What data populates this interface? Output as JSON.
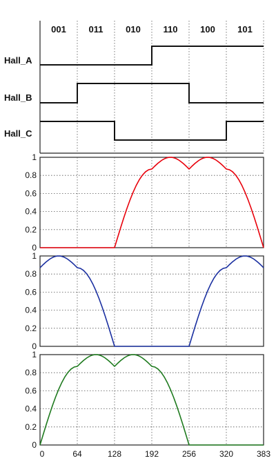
{
  "chart_data": [
    {
      "type": "line",
      "subtype": "digital-timing",
      "title": "",
      "states": [
        "001",
        "011",
        "010",
        "110",
        "100",
        "101"
      ],
      "xlim": [
        0,
        420
      ],
      "grid": true,
      "series": [
        {
          "name": "Hall_A",
          "x": [
            0,
            210,
            210,
            420
          ],
          "y": [
            0,
            0,
            1,
            1
          ]
        },
        {
          "name": "Hall_B",
          "x": [
            0,
            70,
            70,
            280,
            280,
            420
          ],
          "y": [
            0,
            0,
            1,
            1,
            0,
            0
          ]
        },
        {
          "name": "Hall_C",
          "x": [
            0,
            140,
            140,
            350,
            350,
            420
          ],
          "y": [
            1,
            1,
            0,
            0,
            1,
            1
          ]
        }
      ]
    },
    {
      "type": "line",
      "title": "",
      "xlim": [
        0,
        420
      ],
      "ylim": [
        0,
        1
      ],
      "yticks": [
        "0",
        "0.2",
        "0.4",
        "0.6",
        "0.8",
        "1"
      ],
      "grid": true,
      "series": [
        {
          "color": "#e8000b",
          "x": [
            0,
            140,
            210,
            245,
            280,
            315,
            350,
            420
          ],
          "y": [
            0,
            0,
            0.87,
            1,
            0.87,
            1,
            0.87,
            0
          ]
        }
      ]
    },
    {
      "type": "line",
      "title": "",
      "xlim": [
        0,
        420
      ],
      "ylim": [
        0,
        1
      ],
      "yticks": [
        "0",
        "0.2",
        "0.4",
        "0.6",
        "0.8",
        "1"
      ],
      "grid": true,
      "series": [
        {
          "color": "#1a2fa0",
          "x": [
            0,
            35,
            70,
            140,
            280,
            350,
            385,
            420
          ],
          "y": [
            0.87,
            1,
            0.87,
            0,
            0,
            0.87,
            1,
            0.87
          ]
        }
      ]
    },
    {
      "type": "line",
      "title": "",
      "xlim": [
        0,
        420
      ],
      "ylim": [
        0,
        1
      ],
      "xticks": [
        "0",
        "64",
        "128",
        "192",
        "256",
        "320",
        "383"
      ],
      "yticks": [
        "0",
        "0.2",
        "0.4",
        "0.6",
        "0.8",
        "1"
      ],
      "grid": true,
      "series": [
        {
          "color": "#1e7a1e",
          "x": [
            0,
            70,
            105,
            140,
            175,
            210,
            280,
            420
          ],
          "y": [
            0,
            0.87,
            1,
            0.87,
            1,
            0.87,
            0,
            0
          ]
        }
      ]
    }
  ]
}
